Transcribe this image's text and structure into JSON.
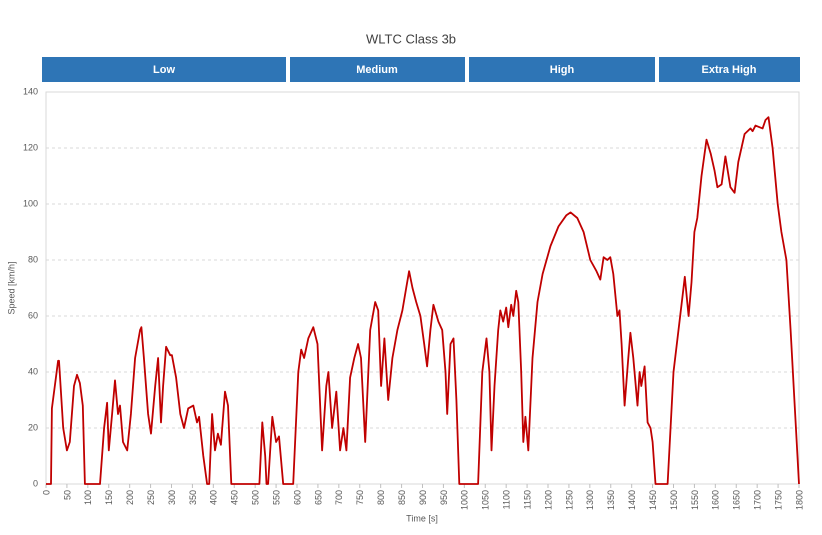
{
  "chart_data": {
    "type": "line",
    "title": "WLTC Class 3b",
    "phases": [
      "Low",
      "Medium",
      "High",
      "Extra High"
    ],
    "x_label": "Time [s]",
    "y_label": "Speed [km/h]",
    "color": "#c00000",
    "grid": true,
    "xlim": [
      0,
      1800
    ],
    "ylim": [
      0,
      140
    ],
    "xticks": [
      0,
      50,
      100,
      150,
      200,
      250,
      300,
      350,
      400,
      450,
      500,
      550,
      600,
      650,
      700,
      750,
      800,
      850,
      900,
      950,
      1000,
      1050,
      1100,
      1150,
      1200,
      1250,
      1300,
      1350,
      1400,
      1450,
      1500,
      1550,
      1600,
      1650,
      1700,
      1750,
      1800
    ],
    "yticks": [
      0,
      20,
      40,
      60,
      80,
      100,
      120,
      140
    ],
    "x": [
      0,
      12,
      14,
      29,
      31,
      41,
      50,
      57,
      67,
      74,
      81,
      88,
      93,
      129,
      139,
      146,
      150,
      158,
      165,
      172,
      177,
      184,
      194,
      203,
      213,
      225,
      228,
      234,
      244,
      251,
      261,
      268,
      275,
      280,
      287,
      297,
      301,
      311,
      321,
      330,
      340,
      352,
      361,
      366,
      376,
      385,
      390,
      397,
      404,
      411,
      418,
      428,
      435,
      443,
      510,
      517,
      524,
      527,
      531,
      541,
      550,
      557,
      567,
      591,
      603,
      610,
      617,
      627,
      639,
      649,
      660,
      670,
      675,
      684,
      694,
      703,
      711,
      718,
      727,
      737,
      746,
      753,
      763,
      775,
      787,
      794,
      801,
      809,
      818,
      828,
      840,
      852,
      861,
      868,
      876,
      885,
      895,
      904,
      911,
      919,
      926,
      938,
      947,
      955,
      959,
      967,
      974,
      981,
      988,
      1033,
      1043,
      1053,
      1060,
      1065,
      1072,
      1081,
      1086,
      1093,
      1100,
      1105,
      1112,
      1117,
      1124,
      1129,
      1136,
      1141,
      1146,
      1153,
      1163,
      1175,
      1187,
      1206,
      1225,
      1244,
      1254,
      1270,
      1285,
      1301,
      1316,
      1325,
      1333,
      1342,
      1349,
      1356,
      1366,
      1371,
      1376,
      1383,
      1392,
      1397,
      1404,
      1414,
      1419,
      1423,
      1431,
      1438,
      1445,
      1450,
      1457,
      1486,
      1500,
      1512,
      1524,
      1527,
      1536,
      1543,
      1550,
      1557,
      1567,
      1579,
      1589,
      1598,
      1605,
      1615,
      1624,
      1636,
      1646,
      1655,
      1670,
      1684,
      1689,
      1696,
      1713,
      1720,
      1727,
      1737,
      1749,
      1758,
      1770,
      1780,
      1789,
      1800
    ],
    "values": [
      0,
      0,
      27,
      44,
      44,
      20,
      12,
      15,
      35,
      39,
      36,
      28,
      0,
      0,
      20,
      29,
      12,
      25,
      37,
      25,
      28,
      15,
      12,
      25,
      45,
      55,
      56,
      45,
      25,
      18,
      35,
      45,
      22,
      35,
      49,
      46,
      46,
      38,
      25,
      20,
      27,
      28,
      22,
      24,
      10,
      0,
      0,
      25,
      12,
      18,
      14,
      33,
      28,
      0,
      0,
      22,
      10,
      0,
      0,
      24,
      15,
      17,
      0,
      0,
      40,
      48,
      45,
      52,
      56,
      50,
      12,
      35,
      40,
      20,
      33,
      12,
      20,
      12,
      38,
      45,
      50,
      45,
      15,
      55,
      65,
      62,
      35,
      52,
      30,
      45,
      55,
      62,
      70,
      76,
      70,
      65,
      60,
      50,
      42,
      55,
      64,
      58,
      55,
      40,
      25,
      50,
      52,
      30,
      0,
      0,
      40,
      52,
      40,
      12,
      35,
      55,
      62,
      58,
      63,
      56,
      64,
      60,
      69,
      65,
      40,
      15,
      24,
      12,
      45,
      65,
      75,
      85,
      92,
      96,
      97,
      95,
      90,
      80,
      76,
      73,
      81,
      80,
      81,
      75,
      60,
      62,
      50,
      28,
      45,
      54,
      45,
      28,
      40,
      35,
      42,
      22,
      20,
      15,
      0,
      0,
      40,
      55,
      70,
      74,
      60,
      72,
      90,
      95,
      110,
      123,
      118,
      112,
      106,
      107,
      117,
      106,
      104,
      115,
      125,
      127,
      126,
      128,
      127,
      130,
      131,
      120,
      100,
      90,
      80,
      55,
      30,
      0
    ]
  }
}
